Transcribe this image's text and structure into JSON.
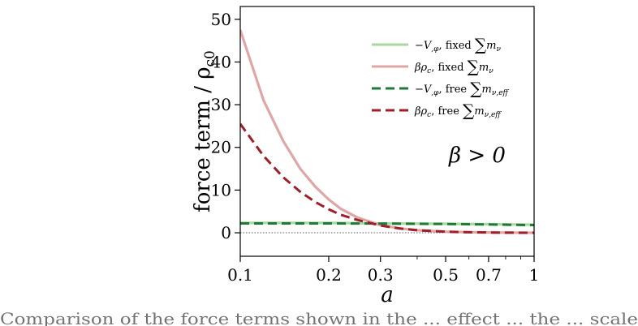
{
  "chart_data": {
    "type": "line",
    "xlabel": "a",
    "ylabel": "force term / ρ",
    "ylabel_sub": "c0",
    "x_scale": "log",
    "xlim": [
      0.1,
      1
    ],
    "ylim": [
      -5.5,
      53
    ],
    "x_ticks": [
      0.1,
      0.2,
      0.3,
      0.5,
      0.7,
      1
    ],
    "x_tick_labels": [
      "0.1",
      "0.2",
      "0.3",
      "0.5",
      "0.7",
      "1"
    ],
    "y_ticks": [
      0,
      10,
      20,
      30,
      40,
      50
    ],
    "y_tick_labels": [
      "0",
      "10",
      "20",
      "30",
      "40",
      "50"
    ],
    "grid": false,
    "legend_position": "top-right",
    "annotation": "β > 0",
    "reference_line": {
      "y": 0,
      "style": "dotted",
      "color": "#555555"
    },
    "series": [
      {
        "name": "−V,φ, fixed ∑mν",
        "legend": {
          "main": "−V",
          "sub": ",φ",
          "mid": ", fixed ",
          "sum": "∑",
          "m": "m",
          "msub": "ν"
        },
        "color": "#a8d8a0",
        "style": "solid",
        "x": [
          0.1,
          0.2,
          0.3,
          0.5,
          0.7,
          1.0
        ],
        "y": [
          2.3,
          2.3,
          2.2,
          2.1,
          2.0,
          1.9
        ]
      },
      {
        "name": "βρc, fixed ∑mν",
        "legend": {
          "main": "βρ",
          "sub": "c",
          "mid": ", fixed ",
          "sum": "∑",
          "m": "m",
          "msub": "ν"
        },
        "color": "#e0a6a6",
        "style": "solid",
        "x": [
          0.1,
          0.12,
          0.14,
          0.16,
          0.18,
          0.2,
          0.22,
          0.25,
          0.3,
          0.35,
          0.4,
          0.5,
          0.6,
          0.7,
          0.8,
          1.0
        ],
        "y": [
          47.5,
          31.0,
          21.5,
          15.0,
          10.8,
          7.8,
          5.6,
          3.6,
          1.8,
          1.0,
          0.6,
          0.25,
          0.12,
          0.06,
          0.03,
          0.0
        ]
      },
      {
        "name": "−V,φ, free ∑mν,eff",
        "legend": {
          "main": "−V",
          "sub": ",φ",
          "mid": ", free ",
          "sum": "∑",
          "m": "m",
          "msub": "ν,eff"
        },
        "color": "#1e7a34",
        "style": "dashed",
        "x": [
          0.1,
          0.2,
          0.3,
          0.5,
          0.7,
          1.0
        ],
        "y": [
          2.2,
          2.2,
          2.15,
          2.05,
          1.95,
          1.8
        ]
      },
      {
        "name": "βρc, free ∑mν,eff",
        "legend": {
          "main": "βρ",
          "sub": "c",
          "mid": ", free ",
          "sum": "∑",
          "m": "m",
          "msub": "ν,eff"
        },
        "color": "#9e1e2a",
        "style": "dashed",
        "x": [
          0.1,
          0.12,
          0.14,
          0.16,
          0.18,
          0.2,
          0.22,
          0.25,
          0.3,
          0.35,
          0.4,
          0.5,
          0.6,
          0.7,
          0.8,
          1.0
        ],
        "y": [
          25.5,
          18.0,
          13.0,
          9.6,
          7.2,
          5.5,
          4.2,
          3.0,
          1.7,
          1.0,
          0.6,
          0.25,
          0.12,
          0.06,
          0.03,
          0.0
        ]
      }
    ]
  },
  "caption_fragment": "Comparison of the force terms shown in the ... effect ... the ... scale"
}
